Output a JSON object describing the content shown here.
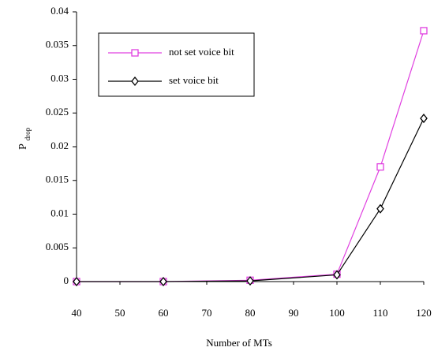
{
  "chart_data": {
    "type": "line",
    "x_label": "Number of MTs",
    "y_label": "P",
    "y_label_subscript": "drop",
    "x": [
      40,
      60,
      80,
      100,
      110,
      120
    ],
    "series": [
      {
        "name": "not set voice bit",
        "color": "#e040e0",
        "marker": "square",
        "values": [
          0,
          0,
          0.0002,
          0.0011,
          0.017,
          0.0372
        ]
      },
      {
        "name": "set voice bit",
        "color": "#000000",
        "marker": "diamond",
        "values": [
          0,
          0,
          0.0001,
          0.001,
          0.0108,
          0.0242
        ]
      }
    ],
    "xlim": [
      40,
      120
    ],
    "xticks": [
      40,
      50,
      60,
      70,
      80,
      90,
      100,
      110,
      120
    ],
    "ylim": [
      0,
      0.04
    ],
    "yticks": [
      0,
      0.005,
      0.01,
      0.015,
      0.02,
      0.025,
      0.03,
      0.035,
      0.04
    ],
    "grid": false
  }
}
